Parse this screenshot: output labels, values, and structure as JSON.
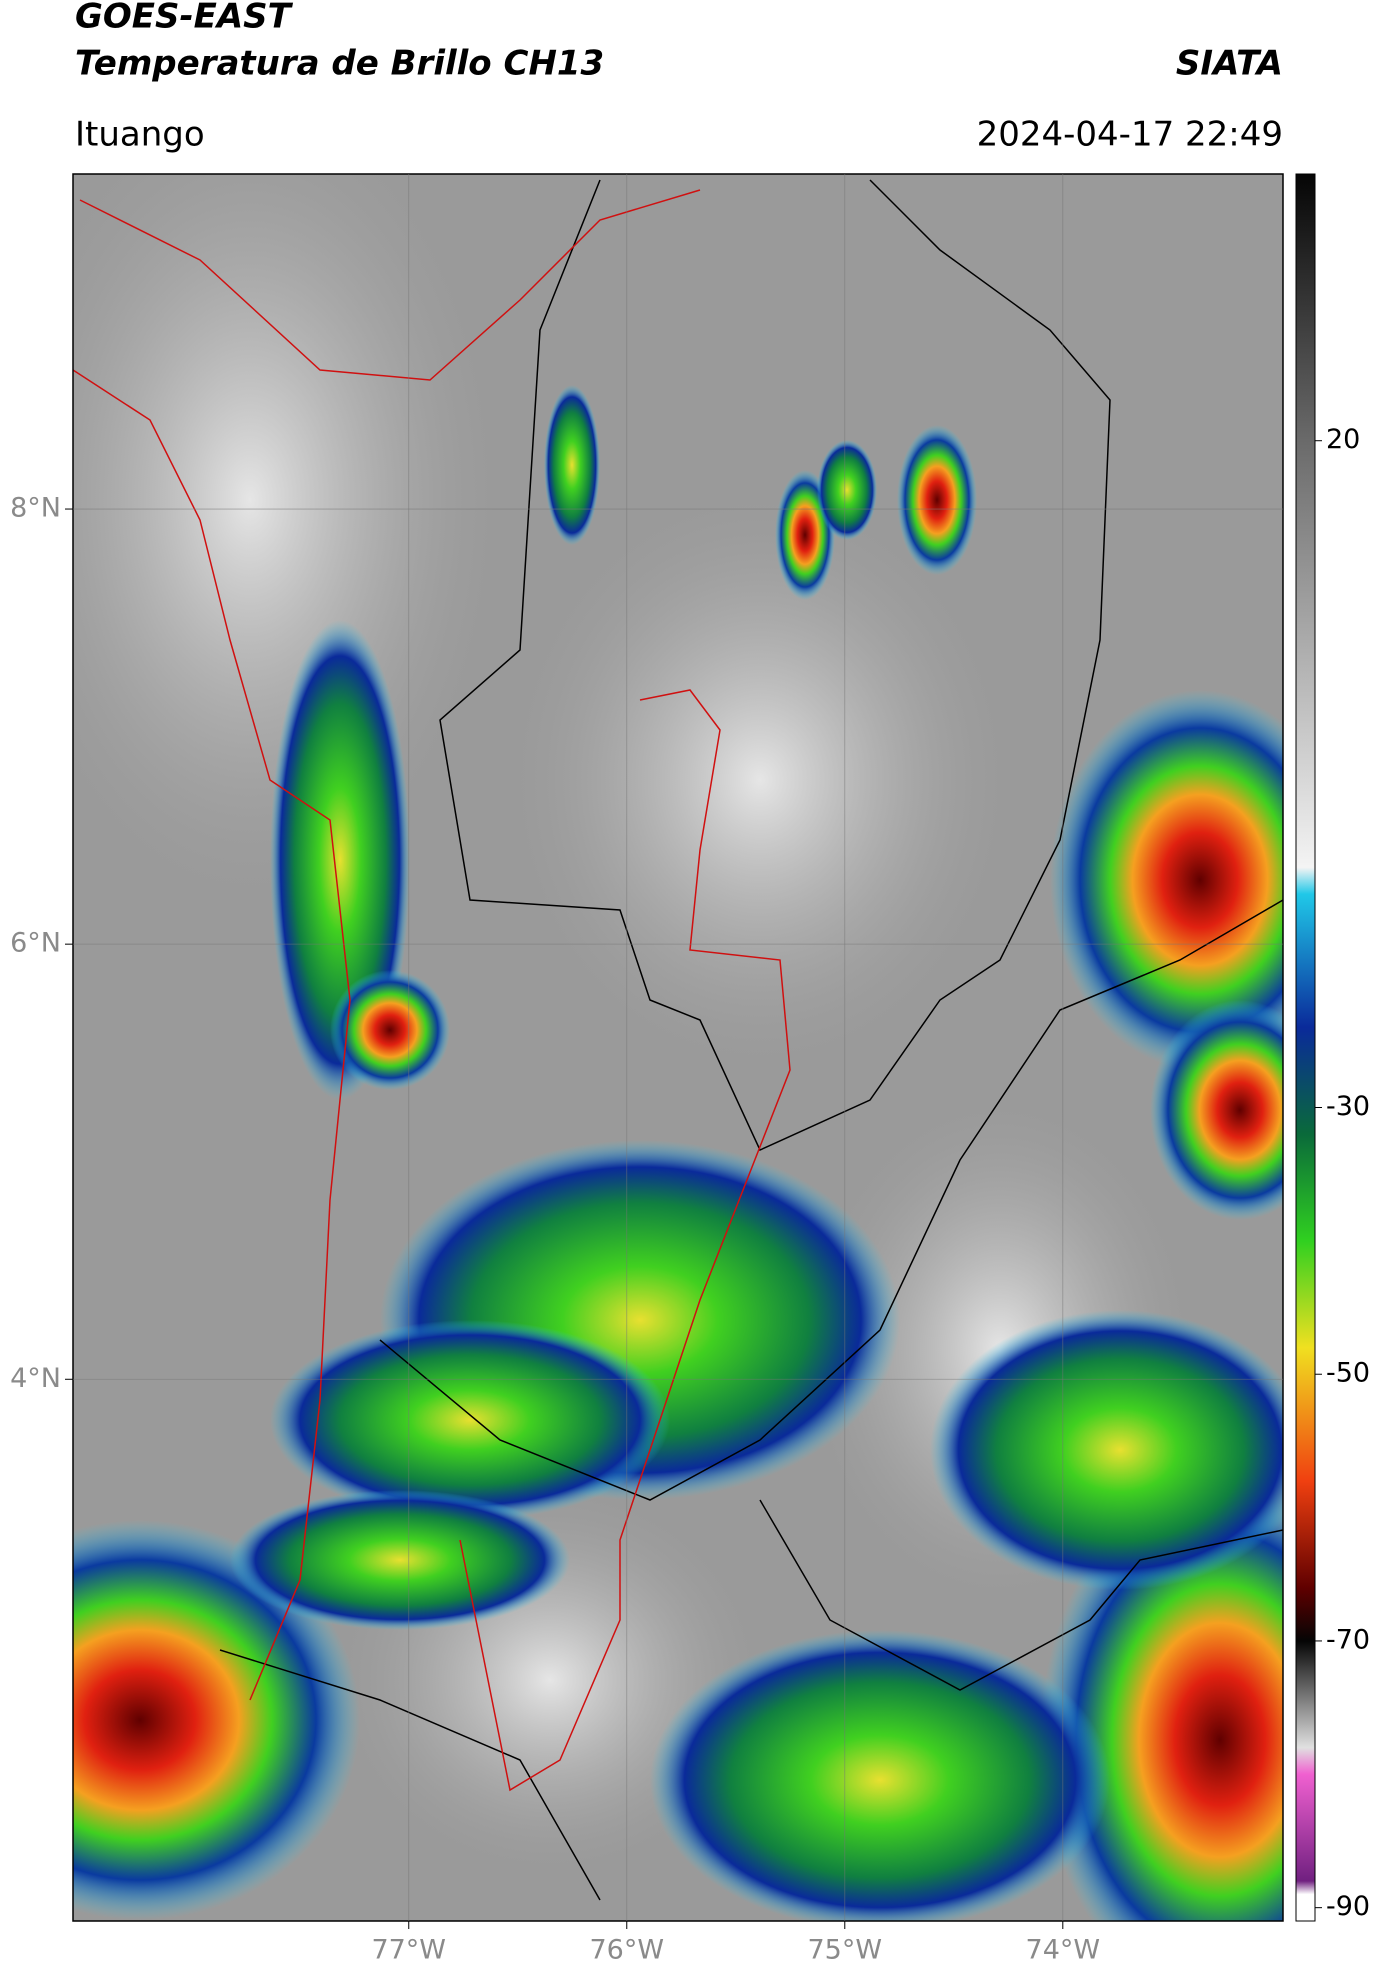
{
  "header": {
    "title": "GOES-EAST",
    "subtitle": "Temperatura de Brillo CH13",
    "brand": "SIATA",
    "location": "Ituango",
    "datetime": "2024-04-17 22:49"
  },
  "map": {
    "xlim": [
      -78.54,
      -72.99
    ],
    "ylim": [
      1.51,
      9.54
    ],
    "grid": true,
    "xticks": [
      {
        "value": -77,
        "label": "77°W"
      },
      {
        "value": -76,
        "label": "76°W"
      },
      {
        "value": -75,
        "label": "75°W"
      },
      {
        "value": -74,
        "label": "74°W"
      }
    ],
    "yticks": [
      {
        "value": 8,
        "label": "8°N"
      },
      {
        "value": 6,
        "label": "6°N"
      },
      {
        "value": 4,
        "label": "4°N"
      }
    ]
  },
  "colorbar": {
    "lim": [
      -91,
      40
    ],
    "ticks": [
      20,
      -30,
      -50,
      -70,
      -90
    ],
    "stops": [
      {
        "value": 40,
        "color": "#050505"
      },
      {
        "value": 20,
        "color": "#6a6a6a"
      },
      {
        "value": -12,
        "color": "#f4f4f4"
      },
      {
        "value": -14,
        "color": "#20c8e8"
      },
      {
        "value": -24,
        "color": "#0a2a9a"
      },
      {
        "value": -32,
        "color": "#0a6a3a"
      },
      {
        "value": -40,
        "color": "#30d020"
      },
      {
        "value": -48,
        "color": "#f0e020"
      },
      {
        "value": -58,
        "color": "#f04010"
      },
      {
        "value": -66,
        "color": "#600000"
      },
      {
        "value": -70,
        "color": "#050505"
      },
      {
        "value": -78,
        "color": "#e0e0e0"
      },
      {
        "value": -80,
        "color": "#f060d0"
      },
      {
        "value": -88,
        "color": "#702080"
      },
      {
        "value": -89,
        "color": "#ffffff"
      }
    ]
  }
}
